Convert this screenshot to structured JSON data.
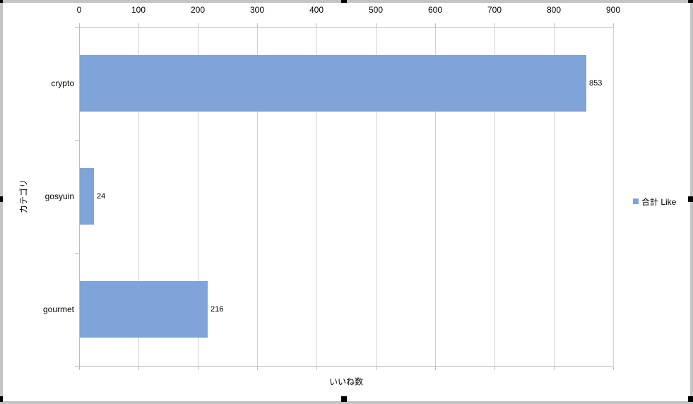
{
  "chart_data": {
    "type": "bar",
    "orientation": "horizontal",
    "categories": [
      "crypto",
      "gosyuin",
      "gourmet"
    ],
    "series": [
      {
        "name": "合計 Like",
        "values": [
          853,
          24,
          216
        ]
      }
    ],
    "data_labels": [
      "853",
      "24",
      "216"
    ],
    "value_axis": {
      "position": "top",
      "min": 0,
      "max": 900,
      "tick_interval": 100,
      "tick_labels": [
        "0",
        "100",
        "200",
        "300",
        "400",
        "500",
        "600",
        "700",
        "800",
        "900"
      ],
      "title": "いいね数"
    },
    "category_axis": {
      "position": "left",
      "title": "カテゴリ"
    },
    "legend": {
      "position": "right",
      "entries": [
        "合計 Like"
      ]
    },
    "grid": true,
    "xlabel": "いいね数",
    "ylabel": "カテゴリ"
  },
  "colors": {
    "bar": "#7EA4D8",
    "axis_line": "#BDBDBD",
    "gridline": "#D2D2D2",
    "chart_border": "#C4C4C4",
    "selection_handle": "#000000",
    "text": "#000000",
    "background": "#FFFFFF"
  }
}
